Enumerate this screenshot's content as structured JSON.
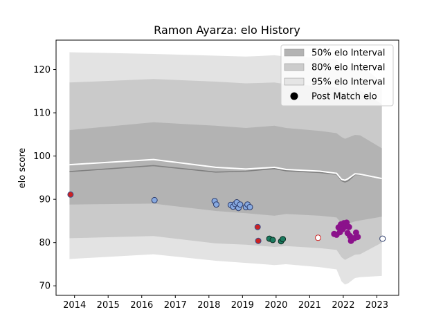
{
  "chart_data": {
    "type": "scatter",
    "title": "Ramon Ayarza: elo History",
    "xlabel": "",
    "ylabel": "elo score",
    "xlim": [
      2013.45,
      2023.65
    ],
    "ylim": [
      67.8,
      126.8
    ],
    "xticks": [
      "2014",
      "2015",
      "2016",
      "2017",
      "2018",
      "2019",
      "2020",
      "2021",
      "2022",
      "2023"
    ],
    "xtick_values": [
      2014,
      2015,
      2016,
      2017,
      2018,
      2019,
      2020,
      2021,
      2022,
      2023
    ],
    "yticks": [
      "70",
      "80",
      "90",
      "100",
      "110",
      "120"
    ],
    "ytick_values": [
      70,
      80,
      90,
      100,
      110,
      120
    ],
    "grid": false,
    "legend": {
      "placement": "top-right",
      "entries": [
        {
          "label": "50% elo Interval",
          "color": "#b3b3b3",
          "kind": "patch"
        },
        {
          "label": "80% elo Interval",
          "color": "#cccccc",
          "kind": "patch"
        },
        {
          "label": "95% elo Interval",
          "color": "#e5e5e5",
          "kind": "patch"
        },
        {
          "label": "Post Match elo",
          "color": "#000000",
          "kind": "marker"
        }
      ]
    },
    "bands": {
      "x": [
        2013.85,
        2016.35,
        2018.2,
        2019.1,
        2019.95,
        2020.3,
        2021.3,
        2021.8,
        2021.95,
        2022.05,
        2022.15,
        2022.35,
        2022.5,
        2023.15
      ],
      "p95_hi": [
        124.0,
        123.6,
        123.2,
        123.0,
        123.3,
        123.0,
        122.7,
        122.3,
        120.5,
        120.0,
        120.3,
        121.5,
        121.2,
        117.0
      ],
      "p80_hi": [
        117.0,
        117.8,
        117.2,
        116.8,
        117.0,
        116.6,
        116.2,
        115.8,
        114.8,
        114.5,
        114.8,
        115.3,
        115.2,
        112.0
      ],
      "p50_hi": [
        106.0,
        107.8,
        107.0,
        106.5,
        107.0,
        106.5,
        105.8,
        105.3,
        104.4,
        104.0,
        104.3,
        104.9,
        104.8,
        101.8
      ],
      "median": [
        96.4,
        97.8,
        96.3,
        96.5,
        97.1,
        96.6,
        96.2,
        95.8,
        94.3,
        94.0,
        94.3,
        95.7,
        95.7,
        94.8
      ],
      "p50_lo": [
        88.8,
        89.0,
        87.3,
        86.8,
        86.2,
        86.6,
        86.2,
        85.8,
        84.4,
        84.0,
        84.4,
        84.9,
        85.1,
        86.0
      ],
      "p80_lo": [
        81.0,
        81.5,
        79.8,
        79.5,
        79.0,
        79.2,
        78.7,
        78.3,
        76.6,
        76.0,
        76.4,
        77.2,
        77.3,
        80.0
      ],
      "p95_lo": [
        76.2,
        77.3,
        75.8,
        75.3,
        74.8,
        75.0,
        74.3,
        73.8,
        71.0,
        70.3,
        70.6,
        71.8,
        72.0,
        72.3
      ]
    },
    "mean_line": {
      "color": "#ffffff",
      "x": [
        2013.85,
        2016.35,
        2018.2,
        2019.1,
        2019.95,
        2020.3,
        2021.3,
        2021.8,
        2021.95,
        2022.05,
        2022.15,
        2022.35,
        2022.5,
        2023.15
      ],
      "y": [
        98.0,
        99.2,
        97.4,
        97.0,
        97.4,
        96.9,
        96.5,
        96.0,
        94.6,
        94.4,
        94.8,
        95.9,
        95.8,
        94.8
      ]
    },
    "points": [
      {
        "x": 2013.88,
        "y": 91.1,
        "fill": "#cc2222",
        "edge": "#3a4e8c"
      },
      {
        "x": 2016.38,
        "y": 89.8,
        "fill": "#87a9e0",
        "edge": "#2a3a6a"
      },
      {
        "x": 2018.17,
        "y": 89.6,
        "fill": "#87a9e0",
        "edge": "#2a3a6a"
      },
      {
        "x": 2018.22,
        "y": 88.8,
        "fill": "#87a9e0",
        "edge": "#2a3a6a"
      },
      {
        "x": 2018.65,
        "y": 88.7,
        "fill": "#87a9e0",
        "edge": "#2a3a6a"
      },
      {
        "x": 2018.72,
        "y": 88.3,
        "fill": "#87a9e0",
        "edge": "#2a3a6a"
      },
      {
        "x": 2018.78,
        "y": 88.9,
        "fill": "#87a9e0",
        "edge": "#2a3a6a"
      },
      {
        "x": 2018.83,
        "y": 89.3,
        "fill": "#87a9e0",
        "edge": "#2a3a6a"
      },
      {
        "x": 2018.88,
        "y": 88.0,
        "fill": "#87a9e0",
        "edge": "#2a3a6a"
      },
      {
        "x": 2018.93,
        "y": 88.8,
        "fill": "#87a9e0",
        "edge": "#2a3a6a"
      },
      {
        "x": 2019.1,
        "y": 88.2,
        "fill": "#87a9e0",
        "edge": "#2a3a6a"
      },
      {
        "x": 2019.15,
        "y": 88.8,
        "fill": "#87a9e0",
        "edge": "#2a3a6a"
      },
      {
        "x": 2019.22,
        "y": 88.2,
        "fill": "#87a9e0",
        "edge": "#2a3a6a"
      },
      {
        "x": 2019.45,
        "y": 83.6,
        "fill": "#cc2222",
        "edge": "#3a4e8c"
      },
      {
        "x": 2019.47,
        "y": 80.4,
        "fill": "#cc2222",
        "edge": "#3a4e8c"
      },
      {
        "x": 2019.8,
        "y": 80.9,
        "fill": "#1a7a5e",
        "edge": "#0a2a20"
      },
      {
        "x": 2019.9,
        "y": 80.6,
        "fill": "#1a7a5e",
        "edge": "#0a2a20"
      },
      {
        "x": 2020.15,
        "y": 80.3,
        "fill": "#1a7a5e",
        "edge": "#0a2a20"
      },
      {
        "x": 2020.2,
        "y": 80.8,
        "fill": "#1a7a5e",
        "edge": "#0a2a20"
      },
      {
        "x": 2021.25,
        "y": 81.1,
        "fill": "#ffffff",
        "edge": "#cc2222"
      },
      {
        "x": 2021.73,
        "y": 82.0,
        "fill": "#8b128b",
        "edge": "#8b128b"
      },
      {
        "x": 2021.8,
        "y": 81.8,
        "fill": "#8b128b",
        "edge": "#8b128b"
      },
      {
        "x": 2021.86,
        "y": 83.5,
        "fill": "#8b128b",
        "edge": "#8b128b"
      },
      {
        "x": 2021.9,
        "y": 82.4,
        "fill": "#8b128b",
        "edge": "#8b128b"
      },
      {
        "x": 2021.93,
        "y": 84.2,
        "fill": "#8b128b",
        "edge": "#8b128b"
      },
      {
        "x": 2021.98,
        "y": 83.1,
        "fill": "#8b128b",
        "edge": "#8b128b"
      },
      {
        "x": 2022.02,
        "y": 84.5,
        "fill": "#8b128b",
        "edge": "#8b128b"
      },
      {
        "x": 2022.06,
        "y": 83.7,
        "fill": "#8b128b",
        "edge": "#8b128b"
      },
      {
        "x": 2022.1,
        "y": 84.6,
        "fill": "#8b128b",
        "edge": "#8b128b"
      },
      {
        "x": 2022.13,
        "y": 82.2,
        "fill": "#8b128b",
        "edge": "#8b128b"
      },
      {
        "x": 2022.17,
        "y": 83.6,
        "fill": "#8b128b",
        "edge": "#8b128b"
      },
      {
        "x": 2022.2,
        "y": 81.5,
        "fill": "#8b128b",
        "edge": "#8b128b"
      },
      {
        "x": 2022.23,
        "y": 80.4,
        "fill": "#8b128b",
        "edge": "#8b128b"
      },
      {
        "x": 2022.28,
        "y": 80.9,
        "fill": "#8b128b",
        "edge": "#8b128b"
      },
      {
        "x": 2022.33,
        "y": 81.0,
        "fill": "#8b128b",
        "edge": "#8b128b"
      },
      {
        "x": 2022.38,
        "y": 82.3,
        "fill": "#8b128b",
        "edge": "#8b128b"
      },
      {
        "x": 2022.43,
        "y": 81.3,
        "fill": "#8b128b",
        "edge": "#8b128b"
      },
      {
        "x": 2023.17,
        "y": 80.9,
        "fill": "#ffffff",
        "edge": "#2a3a6a"
      }
    ]
  }
}
